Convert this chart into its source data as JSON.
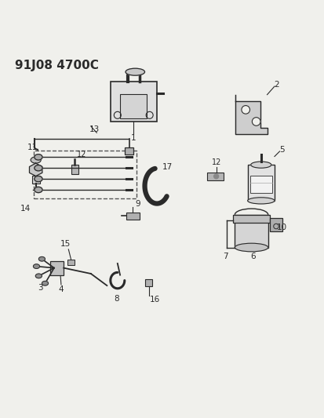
{
  "title": "91J08 4700C",
  "bg_color": "#f0f0ec",
  "line_color": "#2a2a2a",
  "title_fontsize": 11,
  "label_fontsize": 7.5
}
